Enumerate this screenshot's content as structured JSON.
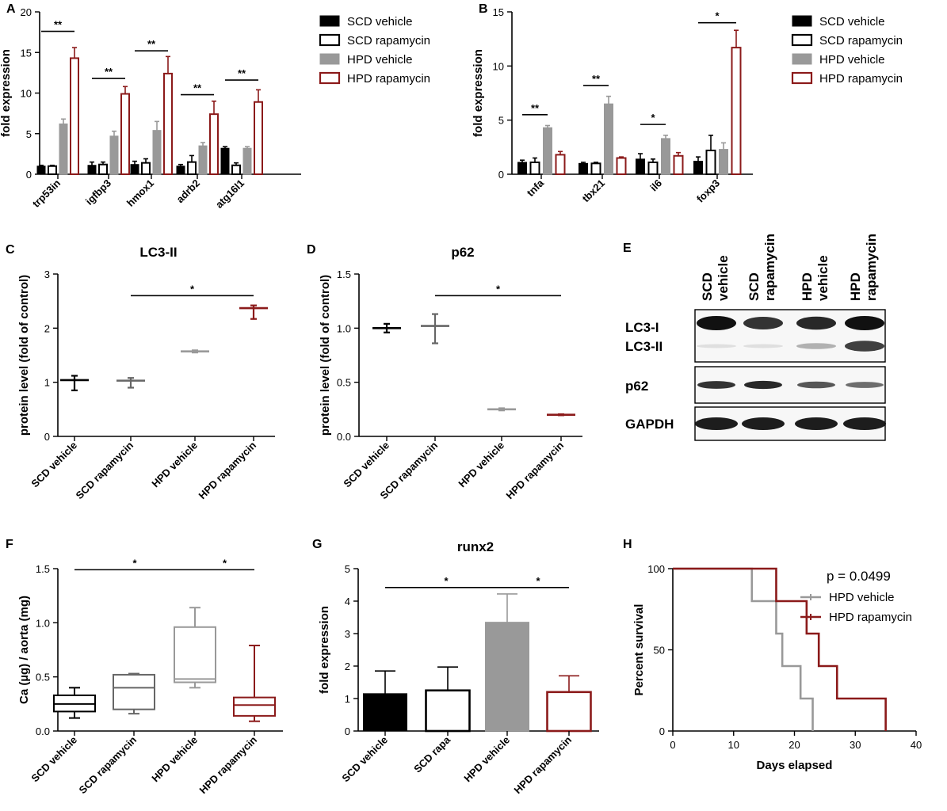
{
  "colors": {
    "scd_vehicle": "#000000",
    "scd_rapamycin": "#000000",
    "hpd_vehicle": "#999999",
    "hpd_rapamycin": "#8b1a1a",
    "scd_rapamycin_box": "#666666"
  },
  "chart_data": [
    {
      "id": "A",
      "panel": "A",
      "type": "bar",
      "title": "",
      "ylabel": "fold expression",
      "ylim": [
        0,
        20
      ],
      "yticks": [
        0,
        5,
        10,
        15,
        20
      ],
      "categories": [
        "trp53in",
        "igfbp3",
        "hmox1",
        "adrb2",
        "atg16l1"
      ],
      "series": [
        {
          "name": "SCD vehicle",
          "style": "filled",
          "color": "#000000",
          "values": [
            1.0,
            1.1,
            1.2,
            1.0,
            3.2
          ],
          "errors": [
            0.1,
            0.4,
            0.4,
            0.2,
            0.2
          ]
        },
        {
          "name": "SCD rapamycin",
          "style": "open",
          "color": "#000000",
          "values": [
            1.0,
            1.2,
            1.4,
            1.5,
            1.1
          ],
          "errors": [
            0.1,
            0.3,
            0.5,
            0.8,
            0.3
          ]
        },
        {
          "name": "HPD vehicle",
          "style": "filled",
          "color": "#999999",
          "values": [
            6.2,
            4.7,
            5.4,
            3.5,
            3.2
          ],
          "errors": [
            0.6,
            0.6,
            1.1,
            0.4,
            0.2
          ]
        },
        {
          "name": "HPD rapamycin",
          "style": "open",
          "color": "#8b1a1a",
          "values": [
            14.3,
            9.9,
            12.4,
            7.4,
            8.9
          ],
          "errors": [
            1.3,
            0.9,
            2.1,
            1.6,
            1.5
          ]
        }
      ],
      "significance": [
        {
          "category": 0,
          "label": "**",
          "y": 17.6
        },
        {
          "category": 1,
          "label": "**",
          "y": 11.8
        },
        {
          "category": 2,
          "label": "**",
          "y": 15.2
        },
        {
          "category": 3,
          "label": "**",
          "y": 9.8
        },
        {
          "category": 4,
          "label": "**",
          "y": 11.6
        }
      ],
      "legend": [
        "SCD vehicle",
        "SCD rapamycin",
        "HPD vehicle",
        "HPD rapamycin"
      ]
    },
    {
      "id": "B",
      "panel": "B",
      "type": "bar",
      "title": "",
      "ylabel": "fold expression",
      "ylim": [
        0,
        15
      ],
      "yticks": [
        0,
        5,
        10,
        15
      ],
      "categories": [
        "tnfa",
        "tbx21",
        "il6",
        "foxp3"
      ],
      "series": [
        {
          "name": "SCD vehicle",
          "style": "filled",
          "color": "#000000",
          "values": [
            1.1,
            1.0,
            1.4,
            1.2
          ],
          "errors": [
            0.2,
            0.1,
            0.5,
            0.4
          ]
        },
        {
          "name": "SCD rapamycin",
          "style": "open",
          "color": "#000000",
          "values": [
            1.1,
            1.0,
            1.1,
            2.2
          ],
          "errors": [
            0.4,
            0.1,
            0.3,
            1.4
          ]
        },
        {
          "name": "HPD vehicle",
          "style": "filled",
          "color": "#999999",
          "values": [
            4.3,
            6.5,
            3.3,
            2.3
          ],
          "errors": [
            0.2,
            0.7,
            0.3,
            0.6
          ]
        },
        {
          "name": "HPD rapamycin",
          "style": "open",
          "color": "#8b1a1a",
          "values": [
            1.8,
            1.5,
            1.7,
            11.7
          ],
          "errors": [
            0.3,
            0.1,
            0.3,
            1.6
          ]
        }
      ],
      "significance": [
        {
          "from": 0,
          "to": 2,
          "category": 0,
          "label": "**",
          "y": 5.5
        },
        {
          "from": 0,
          "to": 2,
          "category": 1,
          "label": "**",
          "y": 8.2
        },
        {
          "from": 0,
          "to": 2,
          "category": 2,
          "label": "*",
          "y": 4.6
        },
        {
          "from": 0,
          "to": 3,
          "category": 3,
          "label": "*",
          "y": 14.0
        }
      ],
      "legend": [
        "SCD vehicle",
        "SCD rapamycin",
        "HPD vehicle",
        "HPD rapamycin"
      ]
    },
    {
      "id": "C",
      "panel": "C",
      "type": "box",
      "title": "LC3-II",
      "ylabel": "protein level (fold of control)",
      "ylim": [
        0,
        3
      ],
      "yticks": [
        0,
        1,
        2,
        3
      ],
      "categories": [
        "SCD vehicle",
        "SCD rapamycin",
        "HPD vehicle",
        "HPD rapamycin"
      ],
      "groups": [
        {
          "min": 0.85,
          "q1": 1.04,
          "median": 1.04,
          "q3": 1.04,
          "max": 1.12,
          "color": "#000000"
        },
        {
          "min": 0.9,
          "q1": 1.03,
          "median": 1.03,
          "q3": 1.03,
          "max": 1.08,
          "color": "#666666"
        },
        {
          "min": 1.55,
          "q1": 1.57,
          "median": 1.57,
          "q3": 1.57,
          "max": 1.59,
          "color": "#999999"
        },
        {
          "min": 2.17,
          "q1": 2.37,
          "median": 2.37,
          "q3": 2.37,
          "max": 2.42,
          "color": "#8b1a1a"
        }
      ],
      "significance": [
        {
          "from": 1,
          "to": 3,
          "label": "*",
          "y": 2.6
        }
      ]
    },
    {
      "id": "D",
      "panel": "D",
      "type": "box",
      "title": "p62",
      "ylabel": "protein level (fold of control)",
      "ylim": [
        0,
        1.5
      ],
      "yticks": [
        0,
        0.5,
        1.0,
        1.5
      ],
      "categories": [
        "SCD vehicle",
        "SCD rapamycin",
        "HPD vehicle",
        "HPD rapamycin"
      ],
      "groups": [
        {
          "min": 0.96,
          "q1": 1.0,
          "median": 1.0,
          "q3": 1.0,
          "max": 1.04,
          "color": "#000000"
        },
        {
          "min": 0.86,
          "q1": 1.02,
          "median": 1.02,
          "q3": 1.02,
          "max": 1.13,
          "color": "#666666"
        },
        {
          "min": 0.24,
          "q1": 0.25,
          "median": 0.25,
          "q3": 0.25,
          "max": 0.26,
          "color": "#999999"
        },
        {
          "min": 0.195,
          "q1": 0.2,
          "median": 0.2,
          "q3": 0.2,
          "max": 0.205,
          "color": "#8b1a1a"
        }
      ],
      "significance": [
        {
          "from": 1,
          "to": 3,
          "label": "*",
          "y": 1.3
        }
      ]
    },
    {
      "id": "F",
      "panel": "F",
      "type": "box",
      "title": "",
      "ylabel": "Ca (µg) / aorta (mg)",
      "ylim": [
        0,
        1.5
      ],
      "yticks": [
        0,
        0.5,
        1.0,
        1.5
      ],
      "categories": [
        "SCD vehicle",
        "SCD rapamycin",
        "HPD vehicle",
        "HPD rapamycin"
      ],
      "groups": [
        {
          "min": 0.12,
          "q1": 0.18,
          "median": 0.25,
          "q3": 0.33,
          "max": 0.4,
          "color": "#000000"
        },
        {
          "min": 0.16,
          "q1": 0.2,
          "median": 0.4,
          "q3": 0.52,
          "max": 0.53,
          "color": "#666666"
        },
        {
          "min": 0.4,
          "q1": 0.45,
          "median": 0.48,
          "q3": 0.96,
          "max": 1.14,
          "color": "#999999"
        },
        {
          "min": 0.09,
          "q1": 0.14,
          "median": 0.24,
          "q3": 0.31,
          "max": 0.79,
          "color": "#8b1a1a"
        }
      ],
      "significance": [
        {
          "from": 0,
          "to": 2,
          "label": "*",
          "y": 1.49
        },
        {
          "from": 2,
          "to": 3,
          "label": "*",
          "y": 1.49
        }
      ]
    },
    {
      "id": "G",
      "panel": "G",
      "type": "bar",
      "title": "runx2",
      "ylabel": "fold expression",
      "ylim": [
        0,
        5
      ],
      "yticks": [
        0,
        1,
        2,
        3,
        4,
        5
      ],
      "categories": [
        "SCD vehicle",
        "SCD rapa",
        "HPD vehicle",
        "HPD rapamycin"
      ],
      "series": [
        {
          "name": "runx2",
          "values": [
            1.15,
            1.25,
            3.35,
            1.2
          ],
          "errors": [
            0.7,
            0.72,
            0.87,
            0.5
          ],
          "styles": [
            "filled",
            "open",
            "filled",
            "open"
          ],
          "colors": [
            "#000000",
            "#000000",
            "#999999",
            "#8b1a1a"
          ]
        }
      ],
      "significance": [
        {
          "from": 0,
          "to": 2,
          "label": "*",
          "y": 4.42
        },
        {
          "from": 2,
          "to": 3,
          "label": "*",
          "y": 4.42
        }
      ]
    },
    {
      "id": "H",
      "panel": "H",
      "type": "line",
      "title": "",
      "xlabel": "Days elapsed",
      "ylabel": "Percent survival",
      "xlim": [
        0,
        40
      ],
      "ylim": [
        0,
        100
      ],
      "xticks": [
        0,
        10,
        20,
        30,
        40
      ],
      "yticks": [
        0,
        50,
        100
      ],
      "annotation": "p = 0.0499",
      "series": [
        {
          "name": "HPD vehicle",
          "color": "#999999",
          "x": [
            0,
            13,
            13,
            17,
            17,
            18,
            18,
            21,
            21,
            23,
            23
          ],
          "y": [
            100,
            100,
            80,
            80,
            60,
            60,
            40,
            40,
            20,
            20,
            0
          ]
        },
        {
          "name": "HPD rapamycin",
          "color": "#8b1a1a",
          "x": [
            0,
            17,
            17,
            22,
            22,
            24,
            24,
            27,
            27,
            35,
            35
          ],
          "y": [
            100,
            100,
            80,
            80,
            60,
            60,
            40,
            40,
            20,
            20,
            0
          ]
        }
      ]
    }
  ],
  "western_blot": {
    "panel": "E",
    "lanes": [
      "SCD vehicle",
      "SCD rapamycin",
      "HPD vehicle",
      "HPD rapamycin"
    ],
    "lane_labels": [
      [
        "SCD",
        "vehicle"
      ],
      [
        "SCD",
        "rapamycin"
      ],
      [
        "HPD",
        "vehicle"
      ],
      [
        "HPD",
        "rapamycin"
      ]
    ],
    "rows": [
      {
        "labels": [
          "LC3-I",
          "LC3-II"
        ],
        "name": "lc3",
        "intensity_upper": [
          1.0,
          0.85,
          0.9,
          1.0
        ],
        "intensity_lower": [
          0.08,
          0.08,
          0.3,
          0.8
        ]
      },
      {
        "labels": [
          "p62"
        ],
        "name": "p62",
        "intensity": [
          0.85,
          0.9,
          0.7,
          0.6
        ]
      },
      {
        "labels": [
          "GAPDH"
        ],
        "name": "gapdh",
        "intensity": [
          0.95,
          0.95,
          0.95,
          0.95
        ]
      }
    ]
  }
}
